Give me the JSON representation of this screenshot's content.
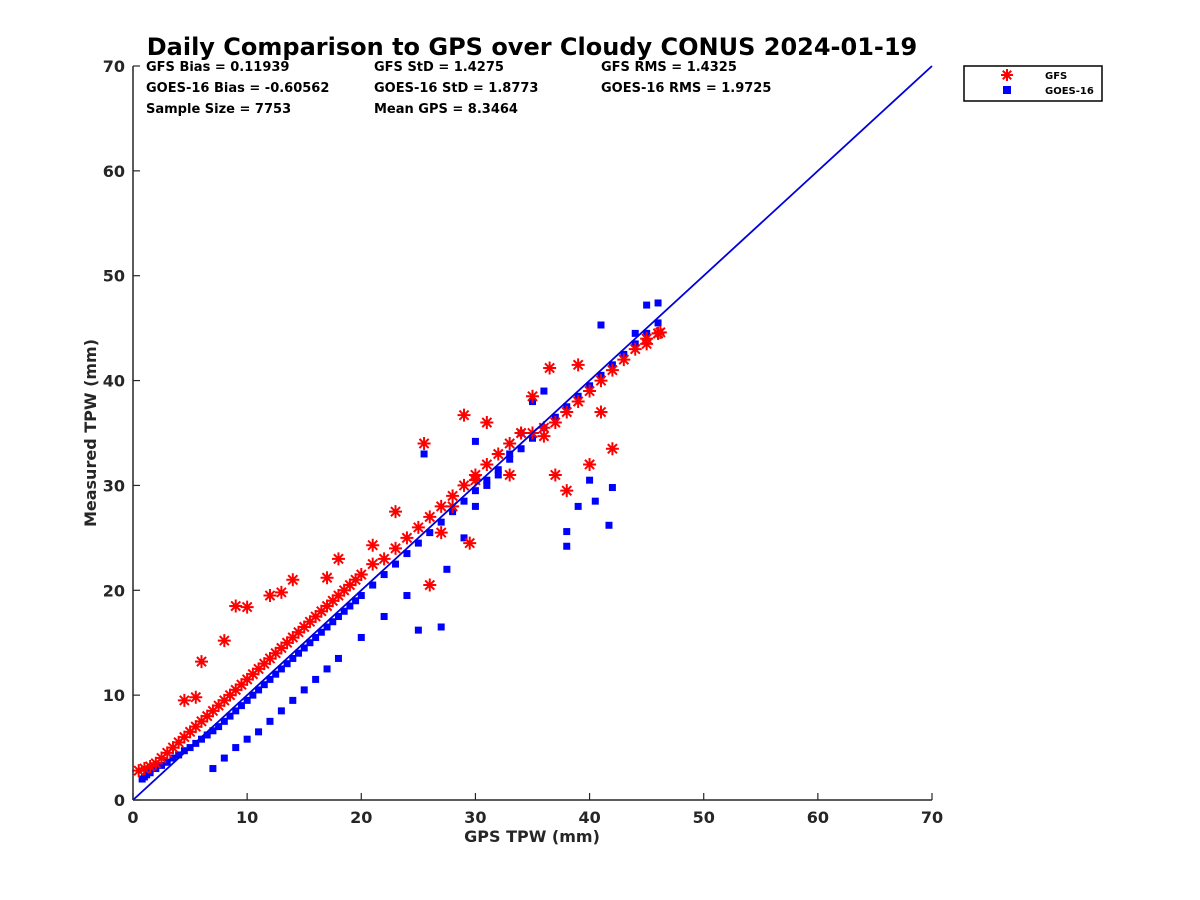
{
  "colors": {
    "gfs": "#ff0000",
    "goes": "#0000ff",
    "line": "#0000dd",
    "axis": "#262626"
  },
  "stats": [
    "GFS Bias = 0.11939",
    "GFS StD = 1.4275",
    "GFS RMS = 1.4325",
    "GOES-16 Bias = -0.60562",
    "GOES-16 StD = 1.8773",
    "GOES-16 RMS = 1.9725",
    "Sample Size = 7753",
    "Mean GPS = 8.3464"
  ],
  "chart_data": {
    "type": "scatter",
    "title": "Daily Comparison to GPS over Cloudy CONUS 2024-01-19",
    "xlabel": "GPS TPW (mm)",
    "ylabel": "Measured TPW (mm)",
    "xlim": [
      0,
      70
    ],
    "ylim": [
      0,
      70
    ],
    "xticks": [
      "0",
      "10",
      "20",
      "30",
      "40",
      "50",
      "60",
      "70"
    ],
    "yticks": [
      "0",
      "10",
      "20",
      "30",
      "40",
      "50",
      "60",
      "70"
    ],
    "grid": false,
    "legend": "outside-top-right",
    "reference_line": {
      "name": "1:1",
      "x": [
        0,
        70
      ],
      "y": [
        0,
        70
      ]
    },
    "series": [
      {
        "name": "GFS",
        "marker": "asterisk",
        "color": "#ff0000",
        "x": [
          0.5,
          1,
          1.5,
          2,
          2.5,
          3,
          3.5,
          4,
          4.5,
          5,
          5.5,
          6,
          6.5,
          7,
          7.5,
          8,
          8.5,
          9,
          9.5,
          10,
          10.5,
          11,
          11.5,
          12,
          12.5,
          13,
          13.5,
          14,
          14.5,
          15,
          15.5,
          16,
          16.5,
          17,
          17.5,
          18,
          18.5,
          19,
          19.5,
          20,
          21,
          22,
          23,
          24,
          25,
          26,
          27,
          28,
          29,
          30,
          31,
          32,
          33,
          34,
          35,
          36,
          37,
          38,
          39,
          40,
          41,
          42,
          43,
          44,
          45,
          46,
          4.5,
          5.5,
          6,
          8,
          9,
          10,
          12,
          13,
          14,
          17,
          18,
          21,
          23,
          25.5,
          26,
          27,
          28,
          29,
          29.5,
          30,
          31,
          33,
          34,
          35,
          36,
          36.5,
          37,
          38,
          39,
          40,
          41,
          42,
          45,
          46,
          46.2
        ],
        "y": [
          2.8,
          3,
          3.2,
          3.5,
          4,
          4.5,
          5,
          5.5,
          6,
          6.5,
          7,
          7.5,
          8,
          8.5,
          9,
          9.5,
          10,
          10.5,
          11,
          11.5,
          12,
          12.5,
          13,
          13.5,
          14,
          14.5,
          15,
          15.5,
          16,
          16.5,
          17,
          17.5,
          18,
          18.5,
          19,
          19.5,
          20,
          20.5,
          21,
          21.5,
          22.5,
          23,
          24,
          25,
          26,
          27,
          28,
          29,
          30,
          31,
          32,
          33,
          34,
          35,
          35,
          35.5,
          36,
          37,
          38,
          39,
          40,
          41,
          42,
          43,
          44,
          44.5,
          9.5,
          9.8,
          13.2,
          15.2,
          18.5,
          18.4,
          19.5,
          19.8,
          21,
          21.2,
          23,
          24.3,
          27.5,
          34,
          20.5,
          25.5,
          28,
          36.7,
          24.5,
          30.5,
          36,
          31,
          35,
          38.5,
          34.7,
          41.2,
          31,
          29.5,
          41.5,
          32,
          37,
          33.5,
          43.5,
          44.5,
          44.6
        ]
      },
      {
        "name": "GOES-16",
        "marker": "square",
        "color": "#0000ff",
        "x": [
          0.8,
          1,
          1.2,
          1.5,
          2,
          2.5,
          3,
          3.5,
          4,
          4.5,
          5,
          5.5,
          6,
          6.5,
          7,
          7.5,
          8,
          8.5,
          9,
          9.5,
          10,
          10.5,
          11,
          11.5,
          12,
          12.5,
          13,
          13.5,
          14,
          14.5,
          15,
          15.5,
          16,
          16.5,
          17,
          17.5,
          18,
          18.5,
          19,
          19.5,
          20,
          21,
          22,
          23,
          24,
          25,
          26,
          27,
          28,
          29,
          30,
          31,
          32,
          33,
          34,
          35,
          36,
          37,
          38,
          39,
          40,
          41,
          42,
          43,
          44,
          45,
          46,
          7,
          8,
          9,
          10,
          11,
          12,
          13,
          14,
          15,
          16,
          17,
          18,
          20,
          22,
          24,
          25,
          27,
          27.5,
          29,
          30,
          31,
          32,
          33,
          34,
          35,
          36,
          38,
          38,
          39,
          40,
          40.5,
          41,
          41.7,
          42,
          44,
          45,
          46,
          25.5,
          30
        ],
        "y": [
          2,
          2.2,
          2.4,
          2.6,
          3,
          3.3,
          3.6,
          4,
          4.3,
          4.7,
          5,
          5.4,
          5.8,
          6.2,
          6.6,
          7,
          7.5,
          8,
          8.5,
          9,
          9.5,
          10,
          10.5,
          11,
          11.5,
          12,
          12.5,
          13,
          13.5,
          14,
          14.5,
          15,
          15.5,
          16,
          16.5,
          17,
          17.5,
          18,
          18.5,
          19,
          19.5,
          20.5,
          21.5,
          22.5,
          23.5,
          24.5,
          25.5,
          26.5,
          27.5,
          28.5,
          29.5,
          30.5,
          31.5,
          32.5,
          33.5,
          34.5,
          35.5,
          36.5,
          37.5,
          38.5,
          39.5,
          40.5,
          41.5,
          42.5,
          43.5,
          44.5,
          45.5,
          3,
          4,
          5,
          5.8,
          6.5,
          7.5,
          8.5,
          9.5,
          10.5,
          11.5,
          12.5,
          13.5,
          15.5,
          17.5,
          19.5,
          16.2,
          16.5,
          22,
          25,
          28,
          30,
          31,
          33,
          35,
          38,
          39,
          24.2,
          25.6,
          28,
          30.5,
          28.5,
          45.3,
          26.2,
          29.8,
          44.5,
          47.2,
          47.4,
          33,
          34.2
        ]
      }
    ]
  }
}
